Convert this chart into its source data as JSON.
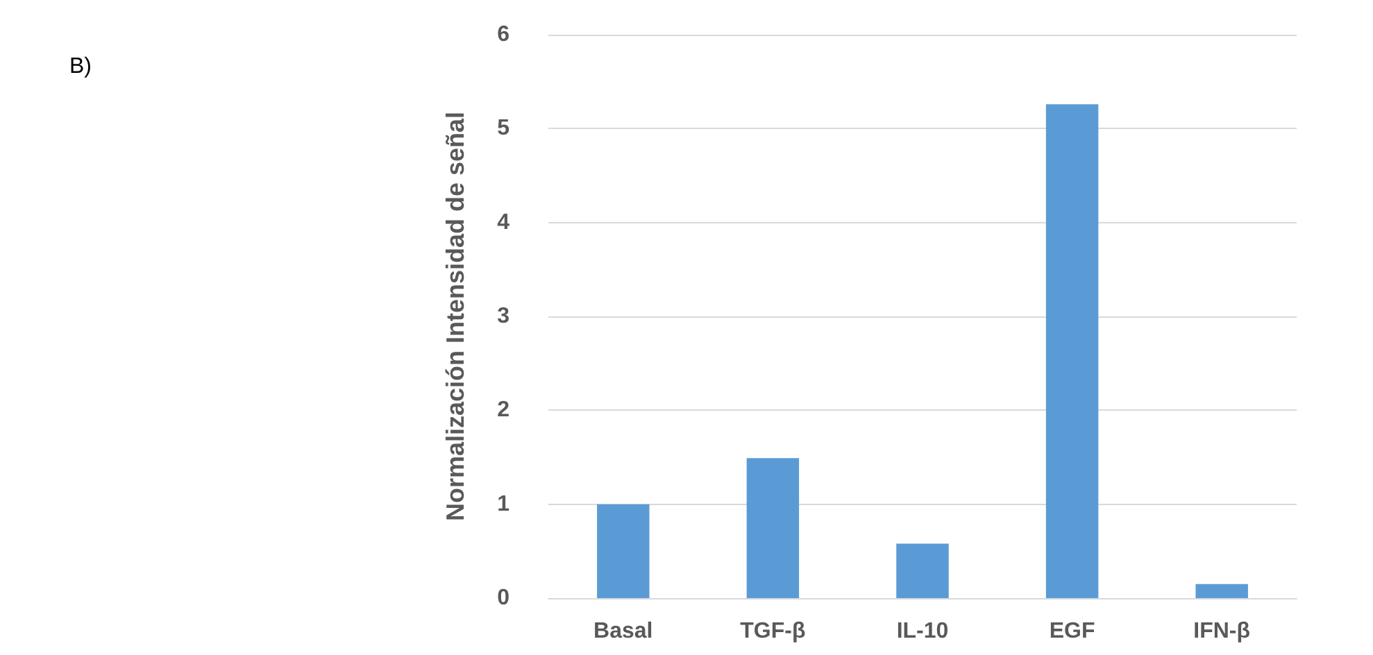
{
  "chart_data": {
    "type": "bar",
    "ylabel": "Normalización Intensidad de señal",
    "annotations": [
      "B)"
    ],
    "categories": [
      "Basal",
      "TGF-β",
      "IL-10",
      "EGF",
      "IFN-β"
    ],
    "values": [
      1.0,
      1.49,
      0.58,
      5.26,
      0.15
    ],
    "color": "#5b9bd5",
    "ylim": [
      0,
      6
    ],
    "yticks": [
      0,
      1,
      2,
      3,
      4,
      5,
      6
    ],
    "grid": "y"
  }
}
